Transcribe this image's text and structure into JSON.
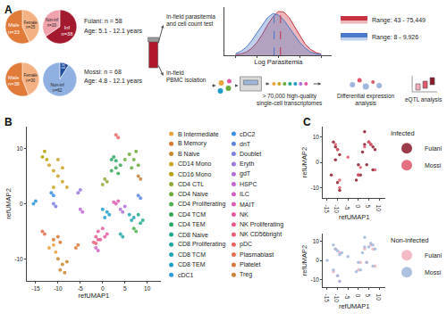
{
  "schematic": {
    "panel_labels": [
      "A",
      "B",
      "C"
    ],
    "cohorts": [
      {
        "label": "Fulani: n = 58",
        "age": "Age: 5.1 - 12.1 years"
      },
      {
        "label": "Mossi: n = 68",
        "age": "Age: 4.8 - 12.1 years"
      }
    ],
    "steps": [
      "In-field parasitemia\nand cell count test",
      "In-field\nPBMC isolation",
      "> 70,000 high-quality\nsingle-cell transcriptomes",
      "Differential expression\nanalysis",
      "eQTL analysis"
    ]
  },
  "chart_data": [
    {
      "type": "pie",
      "categories": [
        "Female\nn=25",
        "Male\nn=33"
      ],
      "values": [
        25,
        33
      ],
      "colors": [
        "#f4b183",
        "#e07b39"
      ]
    },
    {
      "type": "pie",
      "categories": [
        "Inf\nn=38",
        "Non-inf\nn=20"
      ],
      "values": [
        38,
        20
      ],
      "colors": [
        "#a3192e",
        "#f0a3ad"
      ]
    },
    {
      "type": "pie",
      "categories": [
        "Female\nn=30",
        "Male\nn=38"
      ],
      "values": [
        30,
        38
      ],
      "colors": [
        "#f4b183",
        "#e07b39"
      ]
    },
    {
      "type": "pie",
      "categories": [
        "Inf\nn=6",
        "Non-inf\nn=62"
      ],
      "values": [
        6,
        62
      ],
      "colors": [
        "#1f4e9c",
        "#8fb0e0"
      ]
    },
    {
      "type": "line",
      "xlabel": "Log Parasitemia",
      "x": [
        1,
        1.25,
        1.5,
        1.75,
        2,
        2.25,
        2.5,
        2.75,
        3,
        3.25,
        3.5,
        3.75,
        4,
        4.25,
        4.5,
        4.75,
        5
      ],
      "series": [
        {
          "name": "Range: 43 - 75,449",
          "color": "#c8323f",
          "median": 3.1,
          "values": [
            0.006,
            0.017,
            0.04,
            0.086,
            0.16,
            0.26,
            0.38,
            0.48,
            0.545,
            0.54,
            0.47,
            0.36,
            0.24,
            0.14,
            0.074,
            0.034,
            0.014
          ]
        },
        {
          "name": "Range: 8 - 9,926",
          "color": "#4a78c8",
          "median": 2.8,
          "values": [
            0.02,
            0.05,
            0.1,
            0.18,
            0.28,
            0.38,
            0.47,
            0.52,
            0.5,
            0.44,
            0.35,
            0.25,
            0.16,
            0.09,
            0.04,
            0.02,
            0.01
          ]
        }
      ],
      "xlim": [
        0.5,
        5.5
      ],
      "ylim": [
        0,
        0.6
      ],
      "xticks": [
        1,
        2,
        3,
        4,
        5
      ],
      "tick_labels": false,
      "legend": "right"
    },
    {
      "type": "scatter",
      "xlabel": "refUMAP1",
      "ylabel": "refUMAP2",
      "xlim": [
        -17,
        13
      ],
      "ylim": [
        -14,
        14
      ],
      "xticks": [
        -15,
        -10,
        -5,
        0,
        5,
        10
      ],
      "yticks": [
        -10,
        0,
        10
      ],
      "legend": "right",
      "series": [
        {
          "name": "B Intermediate",
          "color": "#e8a33d",
          "x": [
            -12,
            -11,
            -10.5
          ],
          "y": [
            -8,
            -7.5,
            -8.8
          ]
        },
        {
          "name": "B Memory",
          "color": "#d8772d",
          "x": [
            -11,
            -10,
            -9.5
          ],
          "y": [
            -6.5,
            -6,
            -7
          ]
        },
        {
          "name": "B Naive",
          "color": "#c8862a",
          "x": [
            -10,
            -9,
            -8,
            -9.5,
            -8.5
          ],
          "y": [
            -10,
            -11,
            -10.5,
            -12,
            -12.5
          ]
        },
        {
          "name": "CD14 Mono",
          "color": "#c9a227",
          "x": [
            -12,
            -11,
            -10,
            -9,
            -8,
            -11,
            -10,
            -9
          ],
          "y": [
            7,
            6,
            5,
            4,
            3,
            3,
            8,
            6.5
          ]
        },
        {
          "name": "CD16 Mono",
          "color": "#b5a000",
          "x": [
            -13.5,
            -13,
            -12.5
          ],
          "y": [
            8.5,
            9.5,
            8
          ]
        },
        {
          "name": "CD4 CTL",
          "color": "#8fa83a",
          "x": [
            0,
            0.5,
            1
          ],
          "y": [
            3.5,
            4.5,
            4
          ]
        },
        {
          "name": "CD4 Naive",
          "color": "#6aaa3a",
          "x": [
            5,
            6,
            7,
            8,
            6.5,
            7.5
          ],
          "y": [
            8,
            9,
            8,
            7,
            6.5,
            9.5
          ]
        },
        {
          "name": "CD4 Proliferating",
          "color": "#4caf50",
          "x": [
            7,
            7.5
          ],
          "y": [
            -4.5,
            -5
          ]
        },
        {
          "name": "CD4 TCM",
          "color": "#3aa655",
          "x": [
            2,
            3,
            4,
            3.5
          ],
          "y": [
            6,
            6.5,
            7,
            5.5
          ]
        },
        {
          "name": "CD4 TEM",
          "color": "#2aa86a",
          "x": [
            2,
            2.5,
            3
          ],
          "y": [
            8,
            8.5,
            7.8
          ]
        },
        {
          "name": "CD8 Naive",
          "color": "#20a98a",
          "x": [
            8,
            9,
            8.5
          ],
          "y": [
            -2,
            -3,
            -3.5
          ]
        },
        {
          "name": "CD8 Proliferating",
          "color": "#22a8a0",
          "x": [
            4,
            4.5
          ],
          "y": [
            -5.5,
            -6
          ]
        },
        {
          "name": "CD8 TCM",
          "color": "#1fa5b5",
          "x": [
            6,
            6.5,
            7
          ],
          "y": [
            -2,
            -3,
            -2.5
          ]
        },
        {
          "name": "CD8 TEM",
          "color": "#1e9fc8",
          "x": [
            0,
            1,
            1.5,
            0.5
          ],
          "y": [
            -1,
            -1.5,
            -2,
            -2.5
          ]
        },
        {
          "name": "cDC1",
          "color": "#2d98d8",
          "x": [
            -15.5,
            -15
          ],
          "y": [
            0,
            0.5
          ]
        },
        {
          "name": "cDC2",
          "color": "#3a8fe0",
          "x": [
            -11.5,
            -11
          ],
          "y": [
            2,
            1.5
          ]
        },
        {
          "name": "dnT",
          "color": "#5a86e0",
          "x": [
            8,
            8.5
          ],
          "y": [
            1.5,
            1
          ]
        },
        {
          "name": "Doublet",
          "color": "#7a7ee0",
          "x": [
            -11,
            -10.5
          ],
          "y": [
            0,
            -0.5
          ]
        },
        {
          "name": "Eryth",
          "color": "#9a76dc",
          "x": [
            -5.5,
            -5
          ],
          "y": [
            2,
            2.5
          ]
        },
        {
          "name": "gdT",
          "color": "#b06ed6",
          "x": [
            4,
            5,
            4.5
          ],
          "y": [
            -1,
            -0.5,
            -1.5
          ]
        },
        {
          "name": "HSPC",
          "color": "#c066d0",
          "x": [
            -5,
            -4.5
          ],
          "y": [
            -1,
            -1.5
          ]
        },
        {
          "name": "ILC",
          "color": "#cf60c4",
          "x": [
            -1.5,
            -1
          ],
          "y": [
            -8,
            -8.5
          ]
        },
        {
          "name": "MAIT",
          "color": "#dd5cb4",
          "x": [
            3,
            3.5,
            2.5
          ],
          "y": [
            0,
            0.5,
            0.3
          ]
        },
        {
          "name": "NK",
          "color": "#e45aa0",
          "x": [
            -1,
            0,
            1,
            0.5,
            -0.5
          ],
          "y": [
            -5,
            -4.5,
            -5.5,
            -6,
            -6.5
          ]
        },
        {
          "name": "NK Proliferating",
          "color": "#e85c8c",
          "x": [
            -1.5,
            -1
          ],
          "y": [
            -6,
            -6.5
          ]
        },
        {
          "name": "NK CD56bright",
          "color": "#ea6078",
          "x": [
            -2,
            -1.5
          ],
          "y": [
            -7,
            -7.2
          ]
        },
        {
          "name": "pDC",
          "color": "#e86868",
          "x": [
            3,
            3.5
          ],
          "y": [
            12.5,
            12
          ]
        },
        {
          "name": "Plasmablast",
          "color": "#e07050",
          "x": [
            -13.5,
            -13
          ],
          "y": [
            -5,
            -5.5
          ]
        },
        {
          "name": "Platelet",
          "color": "#d8783a",
          "x": [
            -6,
            -5.5
          ],
          "y": [
            -8,
            -7.5
          ]
        },
        {
          "name": "Treg",
          "color": "#c9803a",
          "x": [
            8,
            8.5
          ],
          "y": [
            5,
            4.5
          ]
        }
      ]
    },
    {
      "type": "scatter",
      "xlabel": "refUMAP1",
      "ylabel": "refUMAP2",
      "xlim": [
        -17,
        13
      ],
      "ylim": [
        -14,
        14
      ],
      "xticks": [
        -15,
        -10,
        -5,
        0,
        5,
        10
      ],
      "yticks": [
        -10,
        0,
        10
      ],
      "legend": "right",
      "legend_title": "Infected",
      "series": [
        {
          "name": "Fulani",
          "color": "#8b1a2b",
          "x": [
            -11,
            -10,
            -9,
            -12,
            -13,
            -10,
            -9,
            -11,
            3,
            5,
            6,
            7,
            8,
            2,
            0,
            1,
            4,
            7,
            -1,
            0,
            3
          ],
          "y": [
            6,
            5,
            3,
            8,
            -5,
            -8,
            -11,
            1,
            7,
            8,
            7,
            6,
            5,
            4,
            -1,
            -5,
            -1,
            -3,
            -7,
            -5,
            12
          ]
        },
        {
          "name": "Mossi",
          "color": "#e0566a",
          "x": [
            -10,
            -11,
            -9,
            5,
            6,
            3,
            1,
            0,
            8,
            -9,
            -5
          ],
          "y": [
            5,
            7,
            -10,
            8,
            7,
            6,
            -2,
            -5,
            -3,
            -7,
            2
          ]
        }
      ]
    },
    {
      "type": "scatter",
      "xlabel": "refUMAP1",
      "ylabel": "refUMAP2",
      "xlim": [
        -17,
        13
      ],
      "ylim": [
        -14,
        14
      ],
      "xticks": [
        -15,
        -10,
        -5,
        0,
        5,
        10
      ],
      "yticks": [
        -10,
        0,
        10
      ],
      "legend": "right",
      "legend_title": "Non-infected",
      "series": [
        {
          "name": "Fulani",
          "color": "#f2aebb",
          "x": [
            -11,
            -9,
            -12,
            6,
            7,
            3,
            0,
            1,
            8,
            -10,
            -9,
            4
          ],
          "y": [
            6,
            4,
            -6,
            8,
            6,
            6,
            -5,
            -1,
            -3,
            -8,
            -11,
            -1
          ]
        },
        {
          "name": "Mossi",
          "color": "#9fb7dc",
          "x": [
            -12,
            -11,
            -10,
            -9,
            -8,
            5,
            6,
            7,
            8,
            2,
            3,
            0,
            1,
            -1,
            4,
            7,
            -10,
            -9,
            -12,
            -5,
            3,
            -15
          ],
          "y": [
            8,
            6,
            5,
            3,
            4,
            7,
            9,
            8,
            6,
            4,
            7,
            -1,
            -5,
            -6,
            -1,
            -3,
            -8,
            -11,
            -5,
            2,
            12,
            0
          ]
        }
      ]
    }
  ]
}
